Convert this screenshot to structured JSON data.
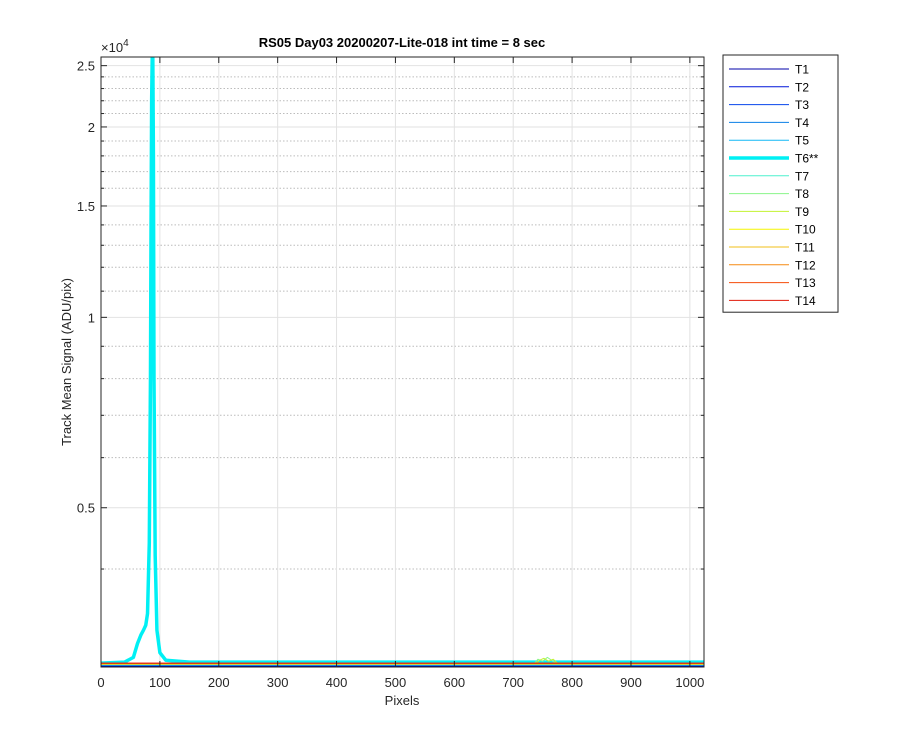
{
  "chart_data": {
    "type": "line",
    "title": "RS05 Day03 20200207-Lite-018 int time = 8 sec",
    "xlabel": "Pixels",
    "ylabel": "Track Mean Signal (ADU/pix)",
    "y_scale": "log",
    "y_exponent_label": "×10",
    "y_exponent_power": "4",
    "xlim": [
      0,
      1024
    ],
    "ylim": [
      2800,
      25800
    ],
    "x_ticks": [
      0,
      100,
      200,
      300,
      400,
      500,
      600,
      700,
      800,
      900,
      1000
    ],
    "x_tick_labels": [
      "0",
      "100",
      "200",
      "300",
      "400",
      "500",
      "600",
      "700",
      "800",
      "900",
      "1000"
    ],
    "y_ticks": [
      5000,
      10000,
      15000,
      20000,
      25000
    ],
    "y_tick_labels": [
      "0.5",
      "1",
      "1.5",
      "2",
      "2.5"
    ],
    "y_minor_ticks": [
      4000,
      6000,
      7000,
      8000,
      9000,
      11000,
      12000,
      13000,
      14000,
      16000,
      17000,
      18000,
      19000,
      21000,
      22000,
      23000,
      24000
    ],
    "grid": true,
    "legend_position": "outside-right",
    "series": [
      {
        "name": "T1",
        "color": "#0000AA",
        "width": 1,
        "x": [
          0,
          1024
        ],
        "y": [
          2810,
          2810
        ]
      },
      {
        "name": "T2",
        "color": "#0016D9",
        "width": 1,
        "x": [
          0,
          1024
        ],
        "y": [
          2815,
          2815
        ]
      },
      {
        "name": "T3",
        "color": "#0645EC",
        "width": 1,
        "x": [
          0,
          1024
        ],
        "y": [
          2815,
          2815
        ]
      },
      {
        "name": "T4",
        "color": "#0A7FE6",
        "width": 1,
        "x": [
          0,
          1024
        ],
        "y": [
          2820,
          2820
        ]
      },
      {
        "name": "T5",
        "color": "#14B8F5",
        "width": 1,
        "x": [
          0,
          1024
        ],
        "y": [
          2820,
          2820
        ]
      },
      {
        "name": "T6**",
        "color": "#00F0F4",
        "width": 3.5,
        "x": [
          0,
          40,
          55,
          62,
          68,
          72,
          76,
          79,
          82,
          84,
          85,
          86,
          87,
          88,
          89,
          90,
          92,
          95,
          100,
          110,
          150,
          300,
          500,
          700,
          1024
        ],
        "y": [
          2840,
          2850,
          2900,
          3050,
          3150,
          3200,
          3260,
          3400,
          4400,
          8000,
          14000,
          22000,
          25800,
          25800,
          18000,
          8000,
          4200,
          3200,
          2950,
          2870,
          2850,
          2850,
          2850,
          2850,
          2850
        ]
      },
      {
        "name": "T7",
        "color": "#4EF0CD",
        "width": 1,
        "x": [
          0,
          1024
        ],
        "y": [
          2825,
          2825
        ]
      },
      {
        "name": "T8",
        "color": "#8AF58A",
        "width": 1,
        "x": [
          0,
          735,
          742,
          750,
          758,
          765,
          772,
          780,
          1024
        ],
        "y": [
          2825,
          2830,
          2880,
          2860,
          2900,
          2870,
          2840,
          2830,
          2825
        ]
      },
      {
        "name": "T9",
        "color": "#C2F230",
        "width": 1,
        "x": [
          0,
          738,
          745,
          752,
          760,
          768,
          775,
          1024
        ],
        "y": [
          2830,
          2835,
          2870,
          2890,
          2860,
          2880,
          2840,
          2830
        ]
      },
      {
        "name": "T10",
        "color": "#F6F500",
        "width": 1,
        "x": [
          0,
          1024
        ],
        "y": [
          2830,
          2830
        ]
      },
      {
        "name": "T11",
        "color": "#F2BF1A",
        "width": 1,
        "x": [
          0,
          1024
        ],
        "y": [
          2832,
          2832
        ]
      },
      {
        "name": "T12",
        "color": "#F58A12",
        "width": 1,
        "x": [
          0,
          1024
        ],
        "y": [
          2835,
          2835
        ]
      },
      {
        "name": "T13",
        "color": "#F54C0A",
        "width": 1,
        "x": [
          0,
          1024
        ],
        "y": [
          2838,
          2838
        ]
      },
      {
        "name": "T14",
        "color": "#E01A0A",
        "width": 1,
        "x": [
          0,
          1024
        ],
        "y": [
          2840,
          2840
        ]
      }
    ]
  }
}
